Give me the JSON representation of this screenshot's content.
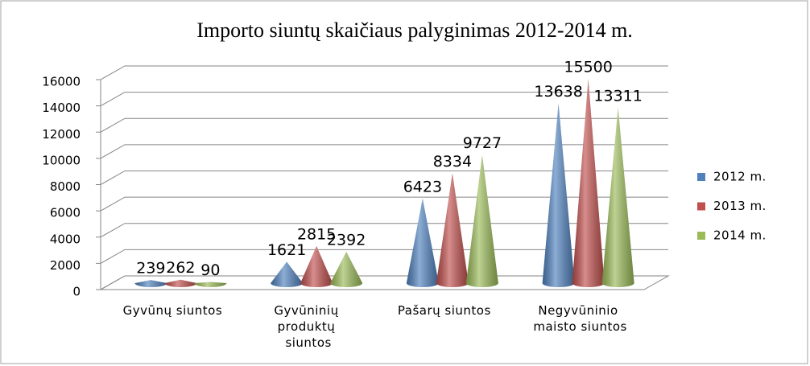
{
  "chart_data": {
    "type": "cone",
    "title": "Importo siuntų skaičiaus palyginimas  2012-2014  m.",
    "categories": [
      "Gyvūnų siuntos",
      "Gyvūninių produktų siuntos",
      "Pašarų siuntos",
      "Negyvūninio maisto siuntos"
    ],
    "series": [
      {
        "name": "2012 m.",
        "color": "#4f81bd",
        "values": [
          239,
          1621,
          6423,
          13638
        ]
      },
      {
        "name": "2013 m.",
        "color": "#c0504d",
        "values": [
          262,
          2815,
          8334,
          15500
        ]
      },
      {
        "name": "2014 m.",
        "color": "#9bbb59",
        "values": [
          90,
          2392,
          9727,
          13311
        ]
      }
    ],
    "ylim": [
      0,
      16000
    ],
    "yticks": [
      0,
      2000,
      4000,
      6000,
      8000,
      10000,
      12000,
      14000,
      16000
    ],
    "grid": true,
    "legend": "right"
  }
}
